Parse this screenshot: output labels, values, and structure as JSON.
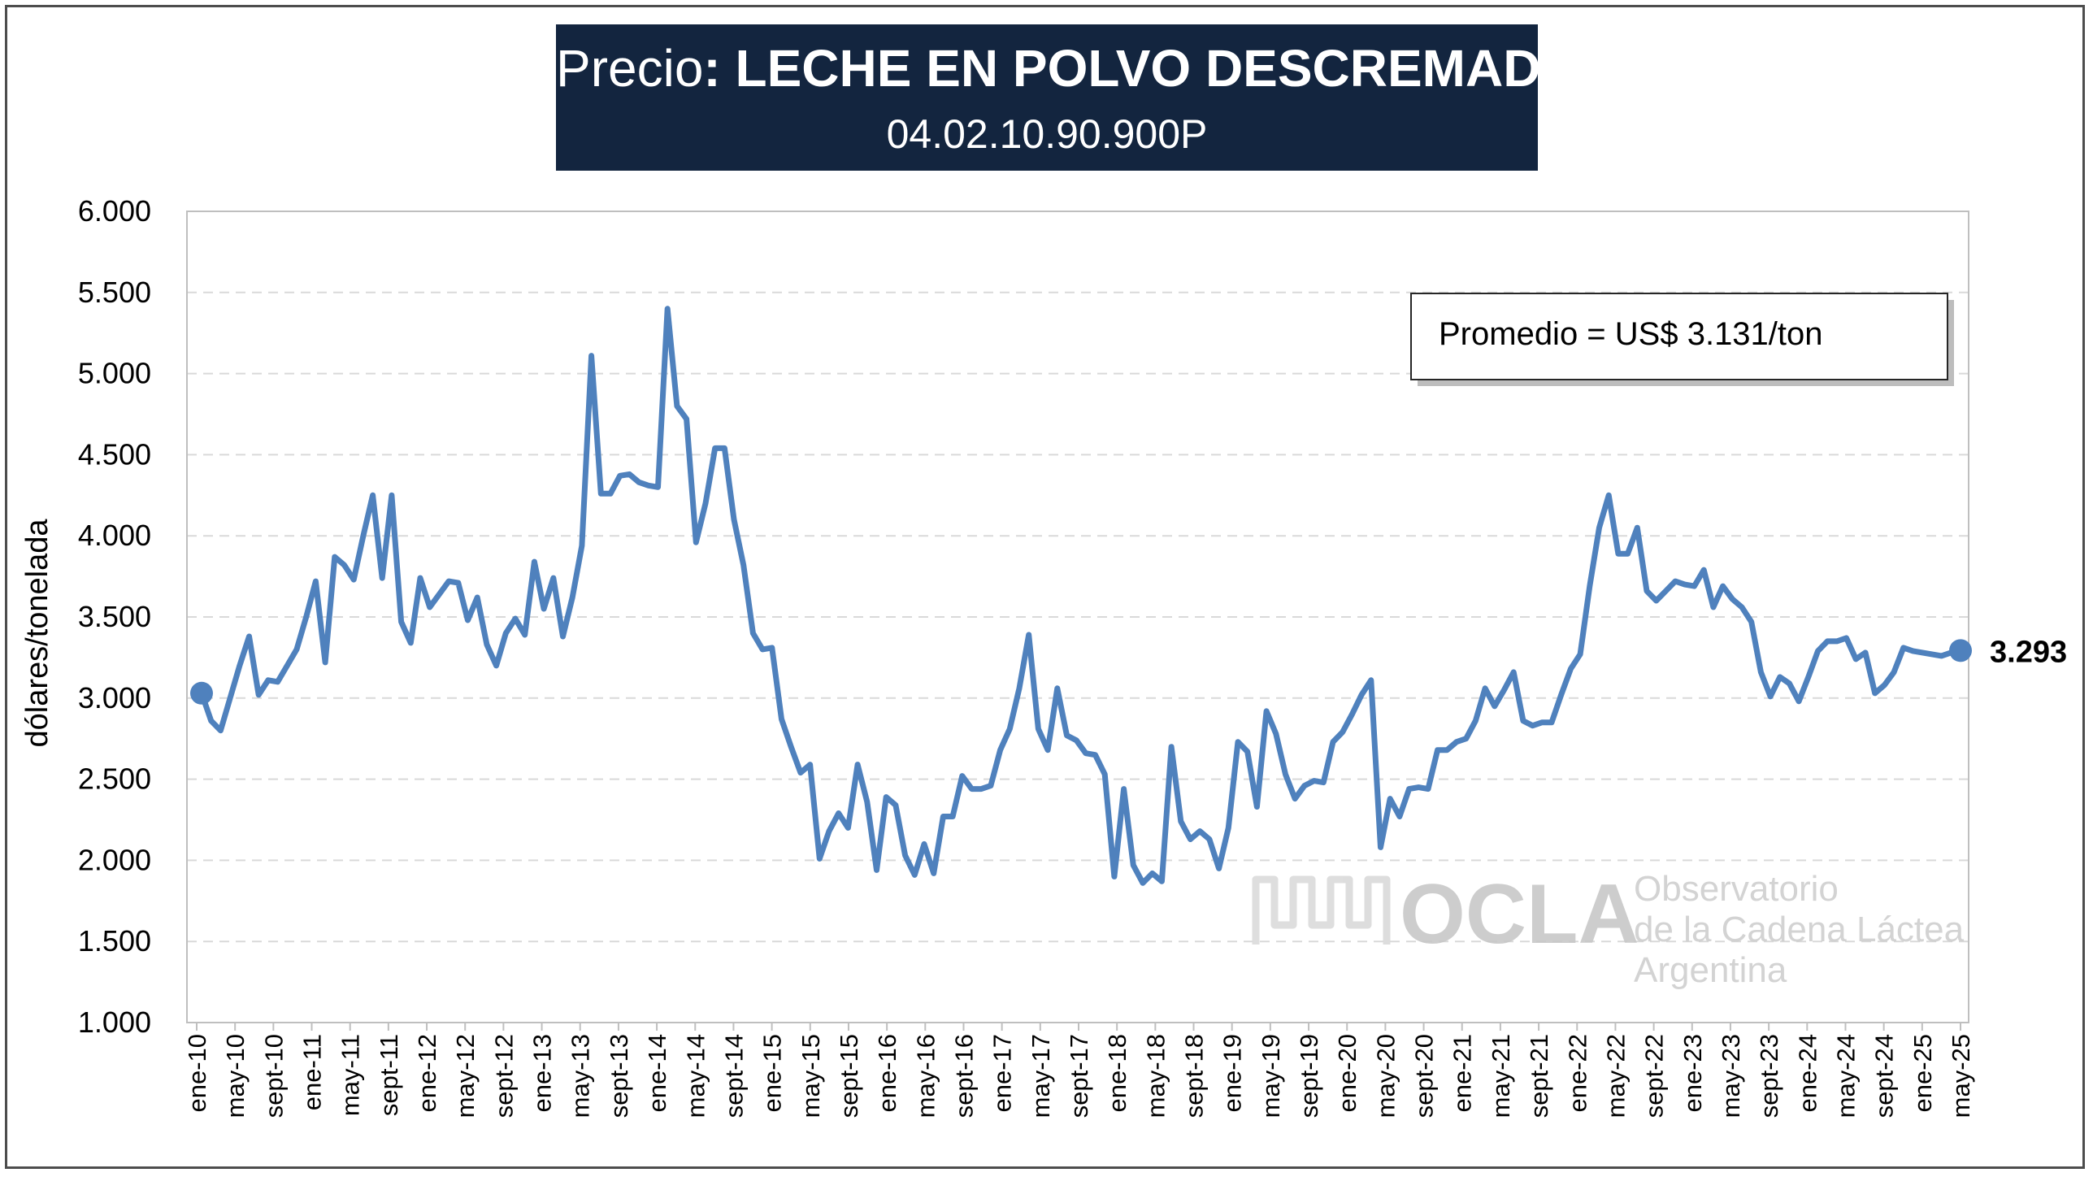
{
  "title": {
    "prefix": "Precio",
    "main": ": LECHE EN POLVO DESCREMADA",
    "code": "04.02.10.90.900P"
  },
  "annotation": "Promedio = US$ 3.131/ton",
  "end_label": "3.293",
  "watermark": {
    "logo_text": "OCLA",
    "line1": "Observatorio",
    "line2": "de la Cadena Láctea",
    "line3": "Argentina"
  },
  "colors": {
    "line": "#4f81bd",
    "title_bg": "#13253f",
    "grid": "#d9d9d9"
  },
  "chart_data": {
    "type": "line",
    "ylabel": "dólares/tonelada",
    "ylim": [
      1000,
      6000
    ],
    "yticks": [
      1000,
      1500,
      2000,
      2500,
      3000,
      3500,
      4000,
      4500,
      5000,
      5500,
      6000
    ],
    "ytick_labels": [
      "1.000",
      "1.500",
      "2.000",
      "2.500",
      "3.000",
      "3.500",
      "4.000",
      "4.500",
      "5.000",
      "5.500",
      "6.000"
    ],
    "xtick_labels": [
      "ene-10",
      "may-10",
      "sept-10",
      "ene-11",
      "may-11",
      "sept-11",
      "ene-12",
      "may-12",
      "sept-12",
      "ene-13",
      "may-13",
      "sept-13",
      "ene-14",
      "may-14",
      "sept-14",
      "ene-15",
      "may-15",
      "sept-15",
      "ene-16",
      "may-16",
      "sept-16",
      "ene-17",
      "may-17",
      "sept-17",
      "ene-18",
      "may-18",
      "sept-18",
      "ene-19",
      "may-19",
      "sept-19",
      "ene-20",
      "may-20",
      "sept-20",
      "ene-21",
      "may-21",
      "sept-21",
      "ene-22",
      "may-22",
      "sept-22",
      "ene-23",
      "may-23",
      "sept-23",
      "ene-24",
      "may-24",
      "sept-24",
      "ene-25",
      "may-25"
    ],
    "grid": "horizontal dashed",
    "markers": [
      "first",
      "last"
    ],
    "series": [
      {
        "values": [
          3030,
          2860,
          2800,
          3000,
          3200,
          3380,
          3020,
          3110,
          3100,
          3200,
          3300,
          3500,
          3720,
          3220,
          3870,
          3820,
          3730,
          4000,
          4250,
          3740,
          4250,
          3470,
          3340,
          3740,
          3560,
          3640,
          3720,
          3710,
          3480,
          3620,
          3330,
          3200,
          3400,
          3490,
          3390,
          3840,
          3550,
          3740,
          3380,
          3620,
          3940,
          5110,
          4260,
          4260,
          4370,
          4380,
          4330,
          4310,
          4300,
          5400,
          4800,
          4720,
          3960,
          4200,
          4540,
          4540,
          4100,
          3820,
          3400,
          3300,
          3310,
          2870,
          2700,
          2540,
          2590,
          2010,
          2180,
          2290,
          2200,
          2590,
          2360,
          1940,
          2390,
          2340,
          2030,
          1910,
          2100,
          1920,
          2270,
          2270,
          2520,
          2440,
          2440,
          2460,
          2680,
          2810,
          3060,
          3390,
          2810,
          2680,
          3060,
          2770,
          2740,
          2660,
          2650,
          2530,
          1900,
          2440,
          1970,
          1860,
          1920,
          1870,
          2700,
          2240,
          2130,
          2180,
          2130,
          1950,
          2200,
          2730,
          2670,
          2330,
          2920,
          2780,
          2530,
          2380,
          2460,
          2490,
          2480,
          2730,
          2790,
          2900,
          3020,
          3110,
          2080,
          2380,
          2270,
          2440,
          2450,
          2440,
          2680,
          2680,
          2730,
          2750,
          2860,
          3060,
          2950,
          3050,
          3160,
          2860,
          2830,
          2850,
          2850,
          3020,
          3180,
          3270,
          3690,
          4050,
          4250,
          3890,
          3890,
          4050,
          3660,
          3600,
          3660,
          3720,
          3700,
          3690,
          3790,
          3560,
          3690,
          3610,
          3560,
          3470,
          3160,
          3010,
          3130,
          3090,
          2980,
          3130,
          3290,
          3350,
          3350,
          3370,
          3240,
          3280,
          3030,
          3080,
          3160,
          3310,
          3290,
          3280,
          3270,
          3260,
          3280,
          3293
        ]
      }
    ]
  }
}
